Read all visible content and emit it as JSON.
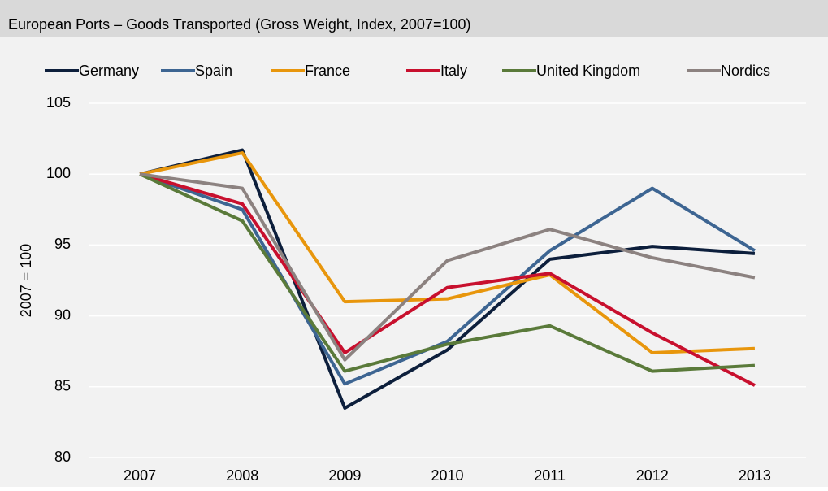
{
  "chart_data": {
    "type": "line",
    "title": "European Ports – Goods Transported (Gross Weight, Index, 2007=100)",
    "y_label": "2007 = 100",
    "categories": [
      "2007",
      "2008",
      "2009",
      "2010",
      "2011",
      "2012",
      "2013"
    ],
    "series": [
      {
        "name": "Germany",
        "color": "#0d1f3c",
        "values": [
          100,
          101.7,
          83.5,
          87.6,
          94.0,
          94.9,
          94.4
        ]
      },
      {
        "name": "Spain",
        "color": "#3d6592",
        "values": [
          100,
          97.5,
          85.2,
          88.2,
          94.6,
          99.0,
          94.6
        ]
      },
      {
        "name": "France",
        "color": "#e8960c",
        "values": [
          100,
          101.5,
          91.0,
          91.2,
          92.9,
          87.4,
          87.7
        ]
      },
      {
        "name": "Italy",
        "color": "#c8102e",
        "values": [
          100,
          97.9,
          87.4,
          92.0,
          93.0,
          88.8,
          85.1
        ]
      },
      {
        "name": "United Kingdom",
        "color": "#5a7a3a",
        "values": [
          100,
          96.7,
          86.1,
          88.0,
          89.3,
          86.1,
          86.5
        ]
      },
      {
        "name": "Nordics",
        "color": "#8c8280",
        "values": [
          100,
          99.0,
          86.9,
          93.9,
          96.1,
          94.1,
          92.7
        ]
      }
    ],
    "ylim": [
      80,
      105
    ],
    "yticks": [
      80,
      85,
      90,
      95,
      100,
      105
    ],
    "grid": true,
    "legend": "top"
  }
}
